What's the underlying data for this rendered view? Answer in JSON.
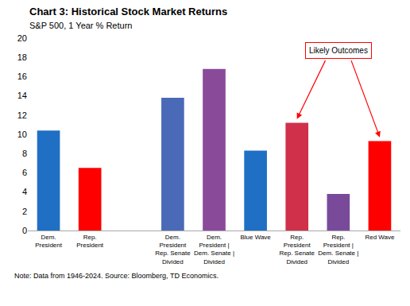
{
  "chart_data": {
    "type": "bar",
    "title": "Chart 3: Historical Stock Market Returns",
    "subtitle": "S&P 500, 1 Year % Return",
    "note": "Note: Data from 1946-2024. Source: Bloomberg, TD Economics.",
    "categories": [
      "Dem. President",
      "Rep. President",
      null,
      "Dem. President Rep. Senate Divided",
      "Dem. President | Dem. Senate | Divided",
      "Blue Wave",
      "Rep. President Rep. Senate Divided",
      "Rep. President | Dem. Senate | Divided",
      "Red Wave"
    ],
    "values": [
      10.4,
      6.5,
      null,
      13.8,
      16.8,
      8.3,
      11.2,
      3.8,
      9.3
    ],
    "colors": [
      "#1f6fc5",
      "#ff0000",
      null,
      "#4a6ab8",
      "#8a4a9a",
      "#1f6fc5",
      "#d0304a",
      "#7a4a9a",
      "#ff0000"
    ],
    "ylim": [
      0,
      20
    ],
    "yticks": [
      0,
      2,
      4,
      6,
      8,
      10,
      12,
      14,
      16,
      18,
      20
    ],
    "grid": false,
    "annotations": [
      {
        "text": "Likely Outcomes",
        "targets": [
          "Rep. President Rep. Senate Divided",
          "Red Wave"
        ]
      }
    ]
  }
}
